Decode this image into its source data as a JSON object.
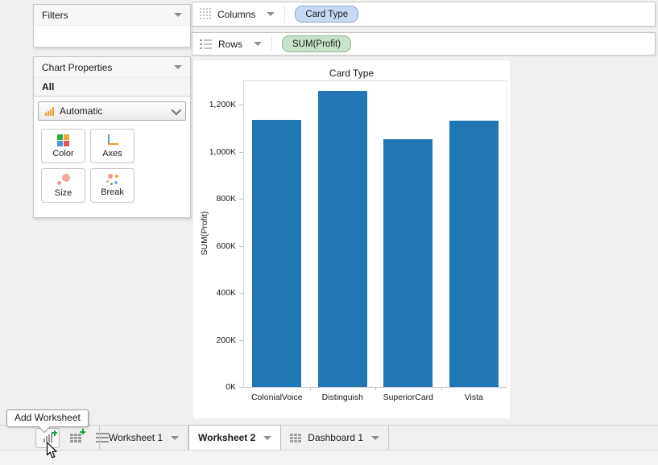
{
  "filters_panel": {
    "title": "Filters"
  },
  "chart_properties": {
    "title": "Chart Properties",
    "scope": "All",
    "mark_dropdown": {
      "value": "Automatic"
    },
    "buttons": [
      {
        "label": "Color"
      },
      {
        "label": "Axes"
      },
      {
        "label": "Size"
      },
      {
        "label": "Break"
      }
    ]
  },
  "shelves": {
    "columns": {
      "label": "Columns",
      "pill": "Card Type"
    },
    "rows": {
      "label": "Rows",
      "pill": "SUM(Profit)"
    }
  },
  "chart_data": {
    "type": "bar",
    "title": "Card Type",
    "ylabel": "SUM(Profit)",
    "categories": [
      "ColonialVoice",
      "Distinguish",
      "SuperiorCard",
      "Vista"
    ],
    "values": [
      1137,
      1258,
      1053,
      1133
    ],
    "value_unit": "K",
    "ylim": [
      0,
      1300
    ],
    "yticks": [
      0,
      200,
      400,
      600,
      800,
      1000,
      1200
    ],
    "ytick_labels": [
      "0K",
      "200K",
      "400K",
      "600K",
      "800K",
      "1,000K",
      "1,200K"
    ],
    "bar_color": "#2077b4",
    "grid": false,
    "legend": false
  },
  "tooltip": {
    "text": "Add Worksheet"
  },
  "bottom_bar": {
    "tabs": [
      {
        "label": "Worksheet 1",
        "active": false
      },
      {
        "label": "Worksheet 2",
        "active": true
      },
      {
        "label": "Dashboard 1",
        "active": false
      }
    ]
  },
  "colors": {
    "bar_blue": "#2077b4",
    "pill_blue_fill": "#c9d9f2",
    "pill_green_fill": "#c8e3ca",
    "plus_green": "#22a03c",
    "mark_icon_orange": "#f59d2a"
  }
}
